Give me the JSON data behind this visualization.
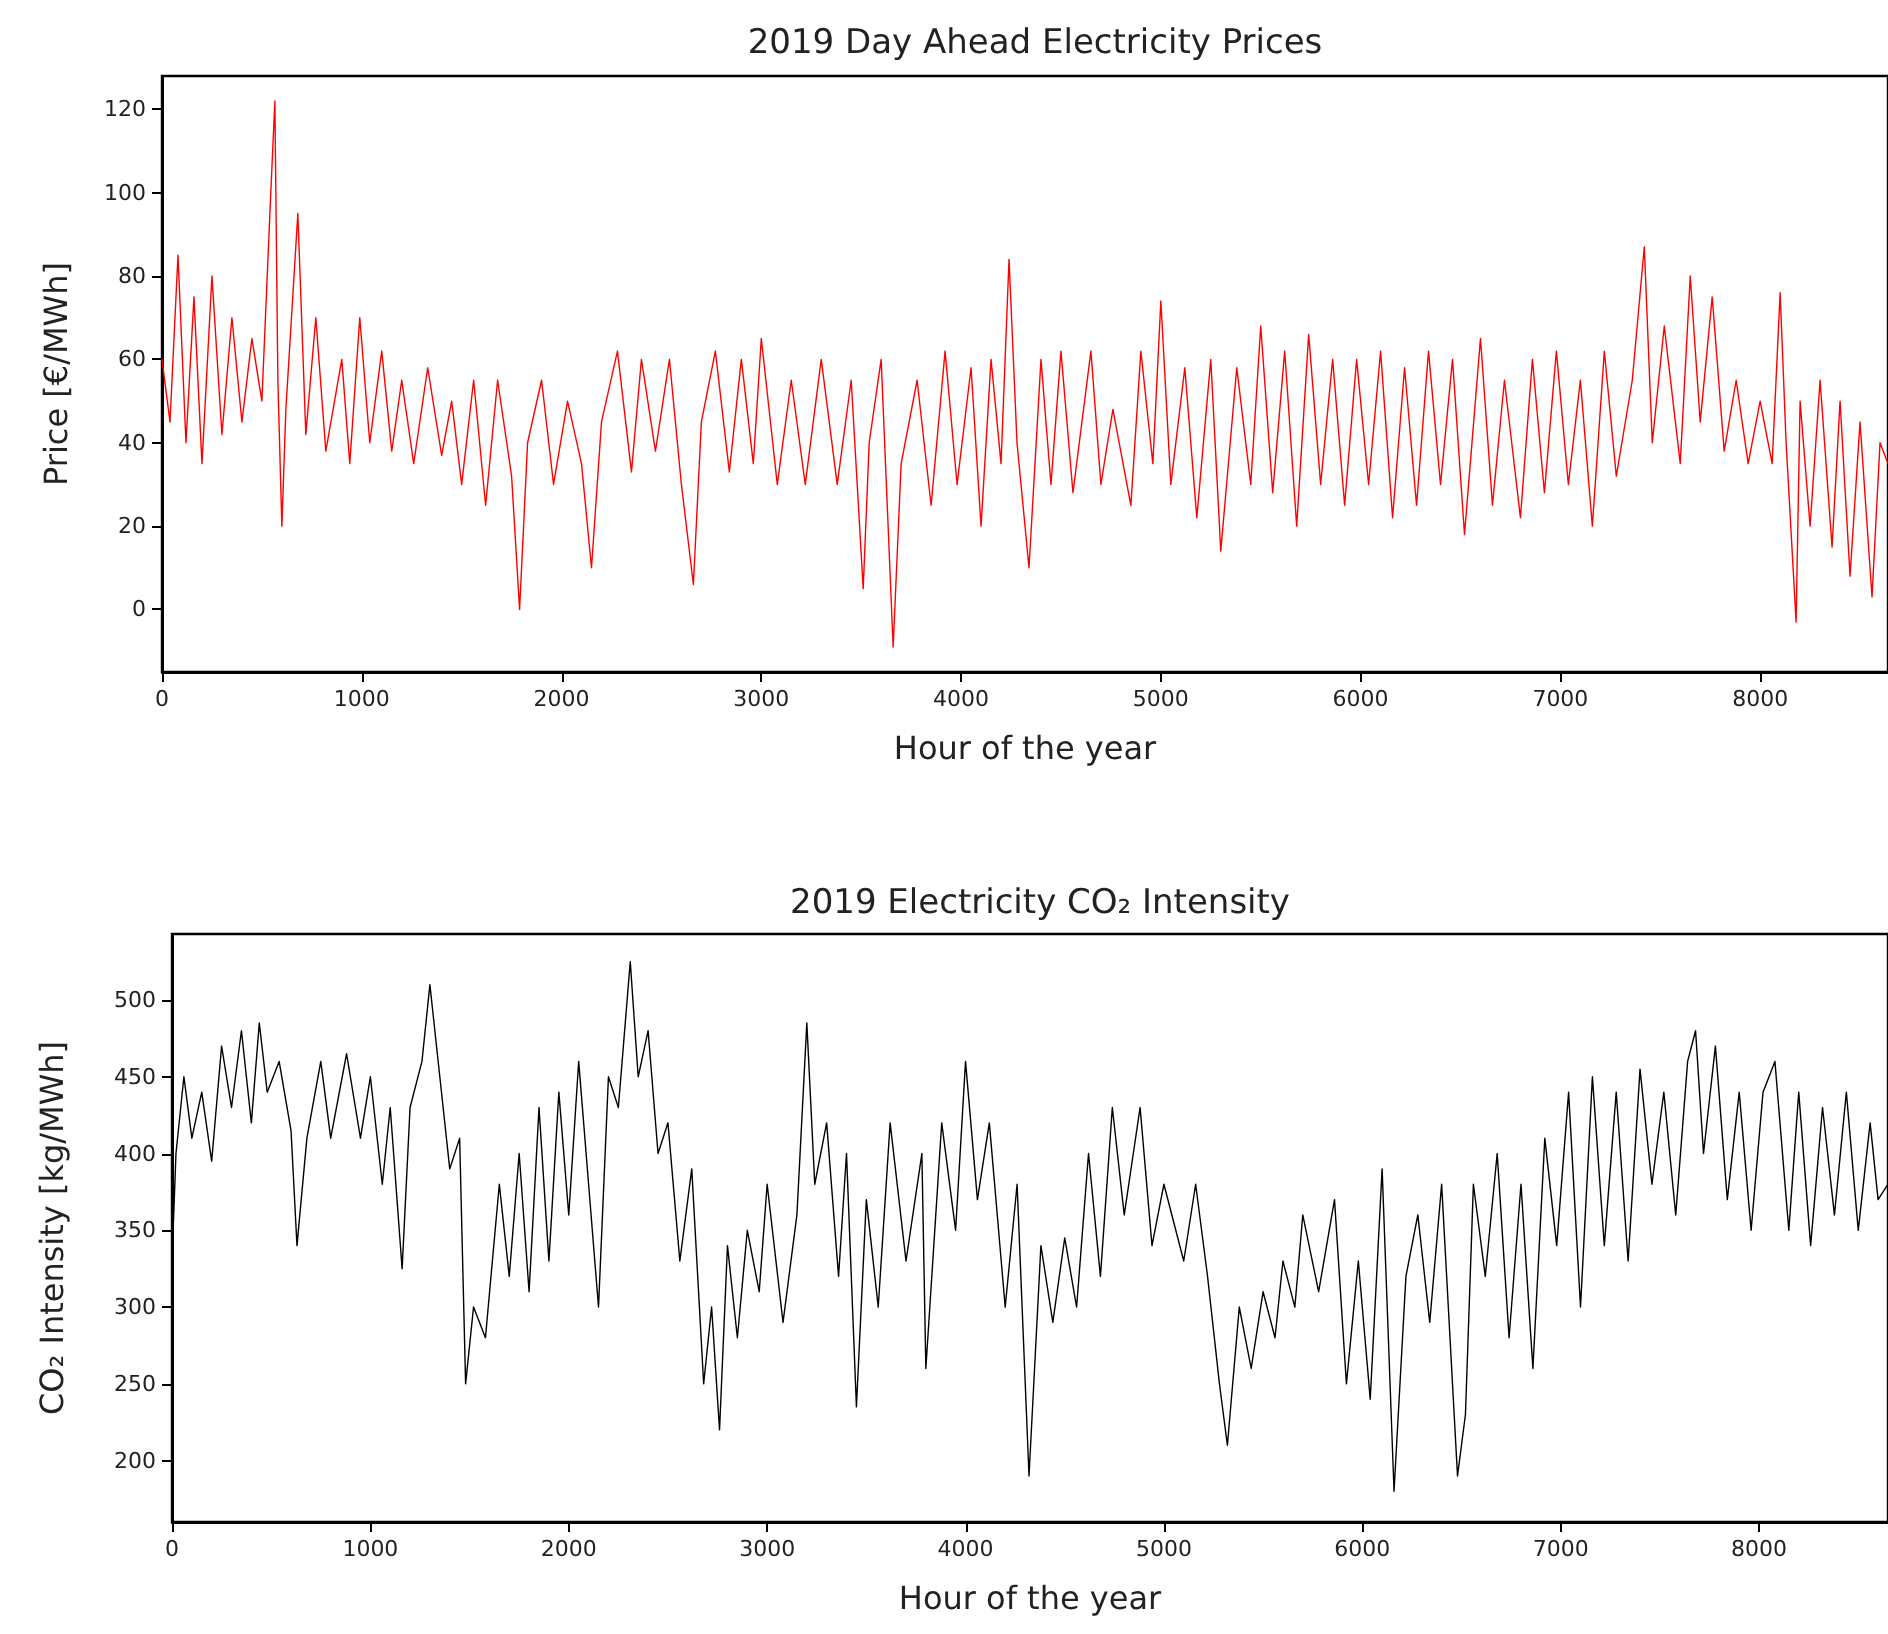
{
  "chart_data": [
    {
      "type": "line",
      "title": "2019 Day Ahead Electricity Prices",
      "xlabel": "Hour of the year",
      "ylabel": "Price [€/MWh]",
      "color": "#ff0000",
      "x": [
        0,
        40,
        80,
        120,
        160,
        200,
        250,
        300,
        350,
        400,
        450,
        500,
        540,
        565,
        580,
        600,
        620,
        680,
        720,
        770,
        820,
        900,
        940,
        990,
        1040,
        1100,
        1150,
        1200,
        1260,
        1330,
        1400,
        1450,
        1500,
        1560,
        1620,
        1680,
        1750,
        1790,
        1830,
        1900,
        1960,
        2030,
        2100,
        2150,
        2200,
        2280,
        2350,
        2400,
        2470,
        2540,
        2600,
        2660,
        2700,
        2770,
        2840,
        2900,
        2960,
        3000,
        3080,
        3150,
        3220,
        3300,
        3380,
        3450,
        3510,
        3540,
        3600,
        3660,
        3700,
        3780,
        3850,
        3920,
        3980,
        4050,
        4100,
        4150,
        4200,
        4240,
        4280,
        4340,
        4400,
        4450,
        4500,
        4560,
        4650,
        4700,
        4760,
        4850,
        4900,
        4960,
        5000,
        5050,
        5120,
        5180,
        5250,
        5300,
        5380,
        5450,
        5500,
        5560,
        5620,
        5680,
        5740,
        5800,
        5860,
        5920,
        5980,
        6040,
        6100,
        6160,
        6220,
        6280,
        6340,
        6400,
        6460,
        6520,
        6600,
        6660,
        6720,
        6800,
        6860,
        6920,
        6980,
        7040,
        7100,
        7160,
        7220,
        7280,
        7360,
        7420,
        7460,
        7520,
        7600,
        7650,
        7700,
        7760,
        7820,
        7880,
        7940,
        8000,
        8060,
        8100,
        8130,
        8180,
        8200,
        8250,
        8300,
        8360,
        8400,
        8450,
        8500,
        8560,
        8600,
        8640
      ],
      "values": [
        60,
        45,
        85,
        40,
        75,
        35,
        80,
        42,
        70,
        45,
        65,
        50,
        95,
        122,
        55,
        20,
        48,
        95,
        42,
        70,
        38,
        60,
        35,
        70,
        40,
        62,
        38,
        55,
        35,
        58,
        37,
        50,
        30,
        55,
        25,
        55,
        32,
        0,
        40,
        55,
        30,
        50,
        35,
        10,
        45,
        62,
        33,
        60,
        38,
        60,
        30,
        6,
        45,
        62,
        33,
        60,
        35,
        65,
        30,
        55,
        30,
        60,
        30,
        55,
        5,
        40,
        60,
        -9,
        35,
        55,
        25,
        62,
        30,
        58,
        20,
        60,
        35,
        84,
        40,
        10,
        60,
        30,
        62,
        28,
        62,
        30,
        48,
        25,
        62,
        35,
        74,
        30,
        58,
        22,
        60,
        14,
        58,
        30,
        68,
        28,
        62,
        20,
        66,
        30,
        60,
        25,
        60,
        30,
        62,
        22,
        58,
        25,
        62,
        30,
        60,
        18,
        65,
        25,
        55,
        22,
        60,
        28,
        62,
        30,
        55,
        20,
        62,
        32,
        55,
        87,
        40,
        68,
        35,
        80,
        45,
        75,
        38,
        55,
        35,
        50,
        35,
        76,
        40,
        -3,
        50,
        20,
        55,
        15,
        50,
        8,
        45,
        3,
        40,
        35
      ],
      "xlim": [
        0,
        8640
      ],
      "xticks": [
        0,
        1000,
        2000,
        3000,
        4000,
        5000,
        6000,
        7000,
        8000
      ],
      "ylim": [
        -15,
        128
      ],
      "yticks": [
        0,
        20,
        40,
        60,
        80,
        100,
        120
      ]
    },
    {
      "type": "line",
      "title": "2019 Electricity CO₂ Intensity",
      "xlabel": "Hour of the year",
      "ylabel": "CO₂ Intensity [kg/MWh]",
      "color": "#000000",
      "x": [
        0,
        20,
        60,
        100,
        150,
        200,
        250,
        300,
        350,
        400,
        440,
        480,
        540,
        600,
        630,
        680,
        750,
        800,
        880,
        950,
        1000,
        1060,
        1100,
        1160,
        1200,
        1260,
        1300,
        1350,
        1400,
        1450,
        1480,
        1520,
        1580,
        1650,
        1700,
        1750,
        1800,
        1850,
        1900,
        1950,
        2000,
        2050,
        2100,
        2150,
        2200,
        2250,
        2310,
        2350,
        2400,
        2450,
        2500,
        2560,
        2620,
        2680,
        2720,
        2760,
        2800,
        2850,
        2900,
        2960,
        3000,
        3080,
        3150,
        3200,
        3240,
        3300,
        3360,
        3400,
        3450,
        3500,
        3560,
        3620,
        3700,
        3780,
        3800,
        3880,
        3950,
        4000,
        4060,
        4120,
        4200,
        4260,
        4320,
        4380,
        4440,
        4500,
        4560,
        4620,
        4680,
        4740,
        4800,
        4880,
        4940,
        5000,
        5100,
        5160,
        5220,
        5280,
        5320,
        5380,
        5440,
        5500,
        5560,
        5600,
        5660,
        5700,
        5780,
        5860,
        5920,
        5980,
        6040,
        6100,
        6160,
        6220,
        6280,
        6340,
        6400,
        6480,
        6520,
        6560,
        6620,
        6680,
        6740,
        6800,
        6860,
        6920,
        6980,
        7040,
        7100,
        7160,
        7220,
        7280,
        7340,
        7400,
        7460,
        7520,
        7580,
        7640,
        7680,
        7720,
        7780,
        7840,
        7900,
        7960,
        8020,
        8080,
        8150,
        8200,
        8260,
        8320,
        8380,
        8440,
        8500,
        8560,
        8600,
        8650
      ],
      "values": [
        330,
        400,
        450,
        410,
        440,
        395,
        470,
        430,
        480,
        420,
        485,
        440,
        460,
        415,
        340,
        410,
        460,
        410,
        465,
        410,
        450,
        380,
        430,
        325,
        430,
        460,
        510,
        450,
        390,
        410,
        250,
        300,
        280,
        380,
        320,
        400,
        310,
        430,
        330,
        440,
        360,
        460,
        380,
        300,
        450,
        430,
        525,
        450,
        480,
        400,
        420,
        330,
        390,
        250,
        300,
        220,
        340,
        280,
        350,
        310,
        380,
        290,
        360,
        485,
        380,
        420,
        320,
        400,
        235,
        370,
        300,
        420,
        330,
        400,
        260,
        420,
        350,
        460,
        370,
        420,
        300,
        380,
        190,
        340,
        290,
        345,
        300,
        400,
        320,
        430,
        360,
        430,
        340,
        380,
        330,
        380,
        320,
        250,
        210,
        300,
        260,
        310,
        280,
        330,
        300,
        360,
        310,
        370,
        250,
        330,
        240,
        390,
        180,
        320,
        360,
        290,
        380,
        190,
        230,
        380,
        320,
        400,
        280,
        380,
        260,
        410,
        340,
        440,
        300,
        450,
        340,
        440,
        330,
        455,
        380,
        440,
        360,
        460,
        480,
        400,
        470,
        370,
        440,
        350,
        440,
        460,
        350,
        440,
        340,
        430,
        360,
        440,
        350,
        420,
        370,
        380
      ],
      "xlim": [
        0,
        8650
      ],
      "xticks": [
        0,
        1000,
        2000,
        3000,
        4000,
        5000,
        6000,
        7000,
        8000
      ],
      "ylim": [
        160,
        543
      ],
      "yticks": [
        200,
        250,
        300,
        350,
        400,
        450,
        500
      ]
    }
  ]
}
